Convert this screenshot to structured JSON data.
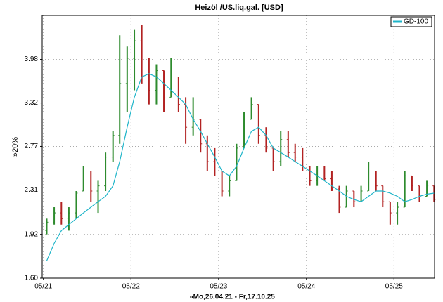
{
  "chart_data": {
    "type": "ohlc",
    "title": "Heizöl /US.liq.gal. [USD]",
    "ylabel": "»20%",
    "xlabel": "»Mo,26.04.21 - Fr,17.10.25",
    "log_y": true,
    "grid": true,
    "legend": "top-right",
    "ylim": [
      1.6,
      4.78
    ],
    "yticks": [
      {
        "value": 1.6,
        "label": "1.60"
      },
      1.92,
      2.31,
      2.77,
      3.32,
      3.98
    ],
    "xlim": [
      "2021-04-26",
      "2025-10-17"
    ],
    "xticks": [
      {
        "value": "2021-05-01",
        "label": "05/21"
      },
      {
        "value": "2022-05-01",
        "label": "05/22"
      },
      {
        "value": "2023-05-01",
        "label": "05/23"
      },
      {
        "value": "2024-05-01",
        "label": "05/24"
      },
      {
        "value": "2025-05-01",
        "label": "05/25"
      }
    ],
    "up_color": "#2e8b2e",
    "down_color": "#b22222",
    "x": [
      "2021-05",
      "2021-06",
      "2021-07",
      "2021-08",
      "2021-09",
      "2021-10",
      "2021-11",
      "2021-12",
      "2022-01",
      "2022-02",
      "2022-03",
      "2022-04",
      "2022-05",
      "2022-06",
      "2022-07",
      "2022-08",
      "2022-09",
      "2022-10",
      "2022-11",
      "2022-12",
      "2023-01",
      "2023-02",
      "2023-03",
      "2023-04",
      "2023-05",
      "2023-06",
      "2023-07",
      "2023-08",
      "2023-09",
      "2023-10",
      "2023-11",
      "2023-12",
      "2024-01",
      "2024-02",
      "2024-03",
      "2024-04",
      "2024-05",
      "2024-06",
      "2024-07",
      "2024-08",
      "2024-09",
      "2024-10",
      "2024-11",
      "2024-12",
      "2025-01",
      "2025-02",
      "2025-03",
      "2025-04",
      "2025-05",
      "2025-06",
      "2025-07",
      "2025-08",
      "2025-09",
      "2025-10"
    ],
    "ohlc": [
      [
        1.95,
        2.05,
        1.92,
        2.02
      ],
      [
        2.02,
        2.15,
        2.0,
        2.1
      ],
      [
        2.1,
        2.2,
        2.0,
        2.05
      ],
      [
        2.05,
        2.15,
        1.95,
        2.1
      ],
      [
        2.1,
        2.3,
        2.05,
        2.28
      ],
      [
        2.3,
        2.55,
        2.3,
        2.5
      ],
      [
        2.5,
        2.5,
        2.2,
        2.3
      ],
      [
        2.3,
        2.4,
        2.1,
        2.35
      ],
      [
        2.35,
        2.7,
        2.3,
        2.65
      ],
      [
        2.65,
        2.95,
        2.6,
        2.9
      ],
      [
        2.9,
        4.4,
        2.8,
        3.6
      ],
      [
        3.6,
        4.2,
        3.2,
        4.0
      ],
      [
        4.0,
        4.5,
        3.5,
        4.3
      ],
      [
        4.3,
        4.6,
        3.6,
        3.7
      ],
      [
        3.7,
        4.0,
        3.3,
        3.5
      ],
      [
        3.5,
        3.9,
        3.3,
        3.8
      ],
      [
        3.8,
        3.8,
        3.2,
        3.4
      ],
      [
        3.4,
        4.0,
        3.4,
        3.7
      ],
      [
        3.7,
        3.7,
        3.2,
        3.3
      ],
      [
        3.3,
        3.4,
        2.8,
        3.0
      ],
      [
        3.0,
        3.4,
        2.9,
        3.1
      ],
      [
        3.1,
        3.1,
        2.7,
        2.8
      ],
      [
        2.8,
        2.9,
        2.5,
        2.6
      ],
      [
        2.6,
        2.75,
        2.45,
        2.5
      ],
      [
        2.5,
        2.5,
        2.25,
        2.3
      ],
      [
        2.3,
        2.45,
        2.25,
        2.4
      ],
      [
        2.4,
        2.8,
        2.4,
        2.75
      ],
      [
        2.75,
        3.2,
        2.75,
        3.1
      ],
      [
        3.1,
        3.4,
        3.1,
        3.3
      ],
      [
        3.3,
        3.3,
        2.8,
        2.9
      ],
      [
        2.9,
        3.0,
        2.7,
        2.75
      ],
      [
        2.75,
        2.75,
        2.5,
        2.6
      ],
      [
        2.6,
        2.95,
        2.55,
        2.85
      ],
      [
        2.85,
        2.95,
        2.65,
        2.7
      ],
      [
        2.7,
        2.8,
        2.6,
        2.65
      ],
      [
        2.65,
        2.75,
        2.5,
        2.55
      ],
      [
        2.55,
        2.55,
        2.35,
        2.4
      ],
      [
        2.4,
        2.55,
        2.35,
        2.5
      ],
      [
        2.5,
        2.55,
        2.4,
        2.42
      ],
      [
        2.42,
        2.5,
        2.3,
        2.32
      ],
      [
        2.32,
        2.35,
        2.1,
        2.15
      ],
      [
        2.15,
        2.35,
        2.15,
        2.3
      ],
      [
        2.3,
        2.3,
        2.15,
        2.2
      ],
      [
        2.2,
        2.35,
        2.2,
        2.3
      ],
      [
        2.3,
        2.6,
        2.3,
        2.5
      ],
      [
        2.5,
        2.5,
        2.3,
        2.35
      ],
      [
        2.35,
        2.35,
        2.15,
        2.2
      ],
      [
        2.2,
        2.2,
        2.0,
        2.1
      ],
      [
        2.1,
        2.2,
        2.0,
        2.15
      ],
      [
        2.15,
        2.5,
        2.15,
        2.45
      ],
      [
        2.45,
        2.45,
        2.3,
        2.35
      ],
      [
        2.35,
        2.35,
        2.2,
        2.25
      ],
      [
        2.25,
        2.4,
        2.25,
        2.35
      ],
      [
        2.35,
        2.35,
        2.2,
        2.22
      ]
    ],
    "series": [
      {
        "name": "GD-100",
        "color": "#1fb5c9",
        "values": [
          1.72,
          1.85,
          1.95,
          2.0,
          2.05,
          2.1,
          2.15,
          2.2,
          2.25,
          2.35,
          2.6,
          3.0,
          3.4,
          3.7,
          3.75,
          3.7,
          3.6,
          3.5,
          3.4,
          3.3,
          3.1,
          2.95,
          2.8,
          2.65,
          2.5,
          2.45,
          2.55,
          2.75,
          2.95,
          3.0,
          2.9,
          2.75,
          2.7,
          2.65,
          2.6,
          2.55,
          2.5,
          2.45,
          2.4,
          2.35,
          2.3,
          2.25,
          2.22,
          2.2,
          2.25,
          2.3,
          2.3,
          2.28,
          2.25,
          2.2,
          2.22,
          2.25,
          2.27,
          2.28
        ]
      }
    ]
  }
}
